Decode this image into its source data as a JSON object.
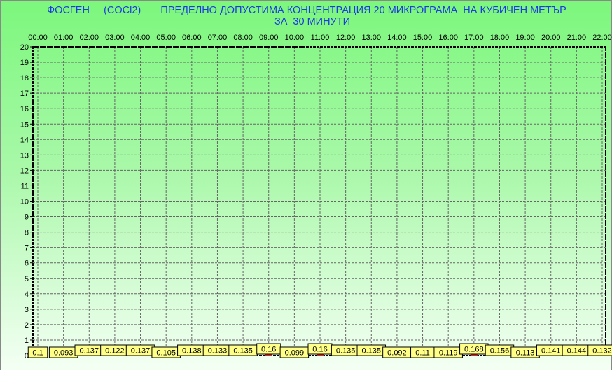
{
  "chart_data": {
    "type": "bar",
    "title_line1": "ФОСГЕН     (COCl2)       ПРЕДЕЛНО ДОПУСТИМА КОНЦЕНТРАЦИЯ 20 МИКРОГРАМА  НА КУБИЧЕН МЕТЪР",
    "title_line2": "ЗА  30 МИНУТИ",
    "categories": [
      "00:00",
      "01:00",
      "02:00",
      "03:00",
      "04:00",
      "05:00",
      "06:00",
      "07:00",
      "08:00",
      "09:00",
      "10:00",
      "11:00",
      "12:00",
      "13:00",
      "14:00",
      "15:00",
      "16:00",
      "17:00",
      "18:00",
      "19:00",
      "20:00",
      "21:00",
      "22:00"
    ],
    "values": [
      0.1,
      0.093,
      0.137,
      0.122,
      0.137,
      0.105,
      0.138,
      0.133,
      0.135,
      0.16,
      0.099,
      0.16,
      0.135,
      0.135,
      0.092,
      0.11,
      0.119,
      0.168,
      0.156,
      0.113,
      0.141,
      0.144,
      0.132
    ],
    "ylim": [
      0,
      20
    ],
    "yticks": [
      0,
      1,
      2,
      3,
      4,
      5,
      6,
      7,
      8,
      9,
      10,
      11,
      12,
      13,
      14,
      15,
      16,
      17,
      18,
      19,
      20
    ],
    "xaxis_position": "top",
    "grid": true,
    "colors": {
      "bar": "#c0302a",
      "label_bg": "#ffff88",
      "title": "#1a3de0",
      "background_top": "#7cf77c"
    }
  }
}
